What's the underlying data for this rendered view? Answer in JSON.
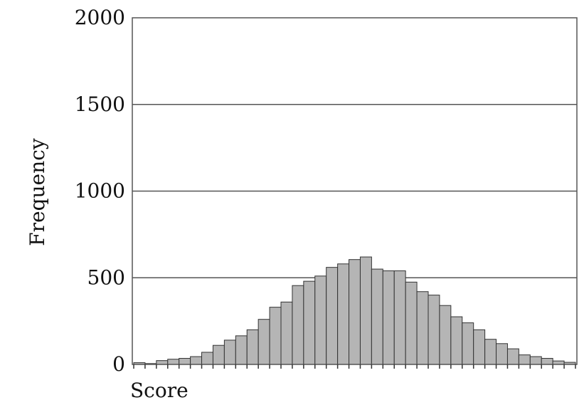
{
  "chart_data": {
    "type": "bar",
    "title": "",
    "xlabel": "Score",
    "ylabel": "Frequency",
    "ylim": [
      0,
      2000
    ],
    "yticks": [
      0,
      500,
      1000,
      1500,
      2000
    ],
    "yticklabels": [
      "0",
      "500",
      "1000",
      "1500",
      "2000"
    ],
    "grid": "horizontal",
    "legend": "none",
    "bar_color": "#b5b5b5",
    "values": [
      10,
      5,
      22,
      30,
      35,
      45,
      70,
      110,
      140,
      165,
      200,
      260,
      330,
      360,
      455,
      480,
      510,
      560,
      580,
      605,
      620,
      550,
      540,
      540,
      475,
      420,
      400,
      340,
      275,
      240,
      200,
      145,
      120,
      90,
      55,
      45,
      35,
      20,
      12
    ]
  }
}
